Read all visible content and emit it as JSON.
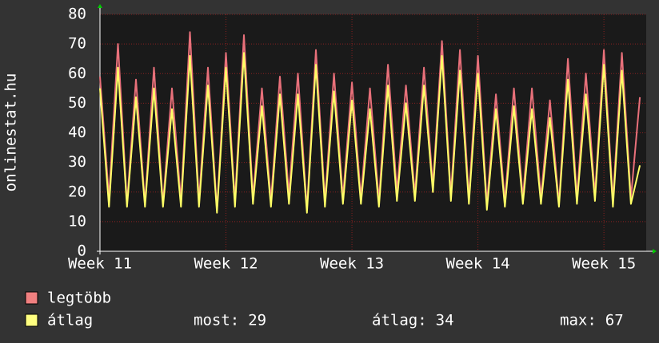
{
  "chart_data": {
    "type": "line",
    "y_label": "onlinestat.hu",
    "x": [
      0,
      0.5,
      1,
      1.5,
      2,
      2.5,
      3,
      3.5,
      4,
      4.5,
      5,
      5.5,
      6,
      6.5,
      7,
      7.5,
      8,
      8.5,
      9,
      9.5,
      10,
      10.5,
      11,
      11.5,
      12,
      12.5,
      13,
      13.5,
      14,
      14.5,
      15,
      15.5,
      16,
      16.5,
      17,
      17.5,
      18,
      18.5,
      19,
      19.5,
      20,
      20.5,
      21,
      21.5,
      22,
      22.5,
      23,
      23.5,
      24,
      24.5,
      25,
      25.5,
      26,
      26.5,
      27,
      27.5,
      28,
      28.5,
      29,
      29.5,
      30
    ],
    "series": [
      {
        "name": "legtöbb",
        "color": "#e8707a",
        "legend_color": "#f08080",
        "values": [
          59,
          18,
          70,
          16,
          58,
          16,
          62,
          16,
          55,
          17,
          74,
          17,
          62,
          14,
          67,
          17,
          73,
          18,
          55,
          17,
          59,
          19,
          60,
          14,
          68,
          17,
          60,
          18,
          57,
          18,
          55,
          17,
          63,
          20,
          56,
          19,
          62,
          22,
          71,
          19,
          68,
          18,
          66,
          16,
          53,
          17,
          55,
          18,
          55,
          18,
          51,
          16,
          65,
          18,
          60,
          19,
          68,
          17,
          67,
          18,
          52
        ]
      },
      {
        "name": "átlag",
        "color": "#ffff66",
        "legend_color": "#ffff80",
        "values": [
          55,
          15,
          62,
          15,
          52,
          15,
          55,
          15,
          48,
          15,
          66,
          15,
          56,
          13,
          62,
          15,
          67,
          16,
          49,
          15,
          53,
          16,
          53,
          13,
          63,
          15,
          54,
          16,
          51,
          16,
          48,
          15,
          56,
          17,
          50,
          17,
          56,
          20,
          66,
          17,
          61,
          16,
          60,
          14,
          48,
          15,
          49,
          16,
          48,
          16,
          45,
          15,
          58,
          16,
          53,
          17,
          63,
          15,
          61,
          16,
          29
        ]
      }
    ],
    "xlim": [
      0,
      30.35
    ],
    "xticks": [
      {
        "value": 0,
        "label": "Week 11"
      },
      {
        "value": 7,
        "label": "Week 12"
      },
      {
        "value": 14,
        "label": "Week 13"
      },
      {
        "value": 21,
        "label": "Week 14"
      },
      {
        "value": 28,
        "label": "Week 15"
      }
    ],
    "ylim": [
      0,
      80
    ],
    "yticks": [
      0,
      10,
      20,
      30,
      40,
      50,
      60,
      70,
      80
    ],
    "grid": true,
    "stats": [
      {
        "label": "most:",
        "value": 29
      },
      {
        "label": "átlag:",
        "value": 34
      },
      {
        "label": "max:",
        "value": 67
      }
    ]
  }
}
